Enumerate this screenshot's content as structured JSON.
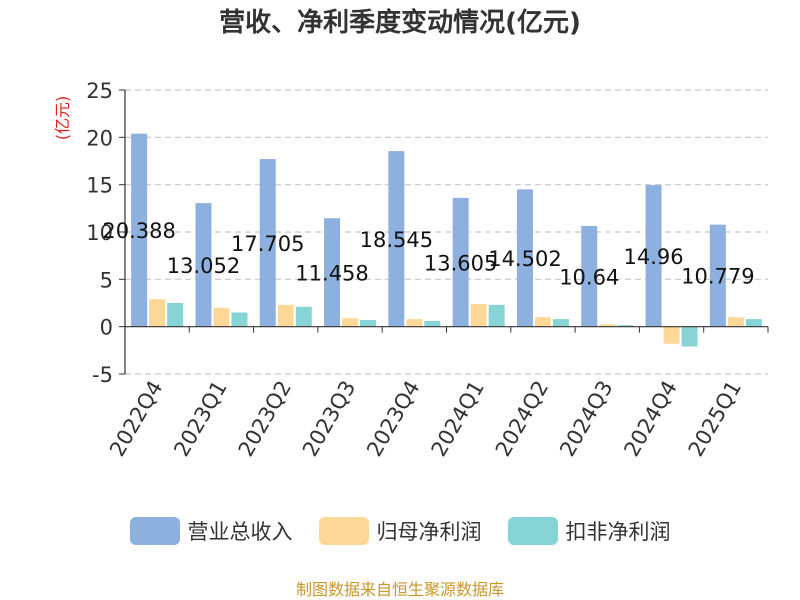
{
  "chart_data": {
    "type": "bar",
    "title": "营收、净利季度变动情况(亿元)",
    "ylabel": "(亿元)",
    "ylim": [
      -5,
      25
    ],
    "yticks": [
      -5,
      0,
      5,
      10,
      15,
      20,
      25
    ],
    "grid": true,
    "legend_position": "bottom",
    "categories": [
      "2022Q4",
      "2023Q1",
      "2023Q2",
      "2023Q3",
      "2023Q4",
      "2024Q1",
      "2024Q2",
      "2024Q3",
      "2024Q4",
      "2025Q1"
    ],
    "series": [
      {
        "name": "营业总收入",
        "color": "#8eb0de",
        "values": [
          20.388,
          13.052,
          17.705,
          11.458,
          18.545,
          13.605,
          14.502,
          10.64,
          14.96,
          10.779
        ],
        "data_labels": [
          "20.388",
          "13.052",
          "17.705",
          "11.458",
          "18.545",
          "13.605",
          "14.502",
          "10.64",
          "14.96",
          "10.779"
        ]
      },
      {
        "name": "归母净利润",
        "color": "#fdd898",
        "values": [
          2.9,
          2.0,
          2.3,
          0.9,
          0.8,
          2.4,
          1.0,
          0.25,
          -1.8,
          1.0
        ]
      },
      {
        "name": "扣非净利润",
        "color": "#86d4d6",
        "values": [
          2.5,
          1.5,
          2.1,
          0.7,
          0.6,
          2.3,
          0.8,
          0.15,
          -2.1,
          0.8
        ]
      }
    ],
    "source": "制图数据来自恒生聚源数据库"
  }
}
